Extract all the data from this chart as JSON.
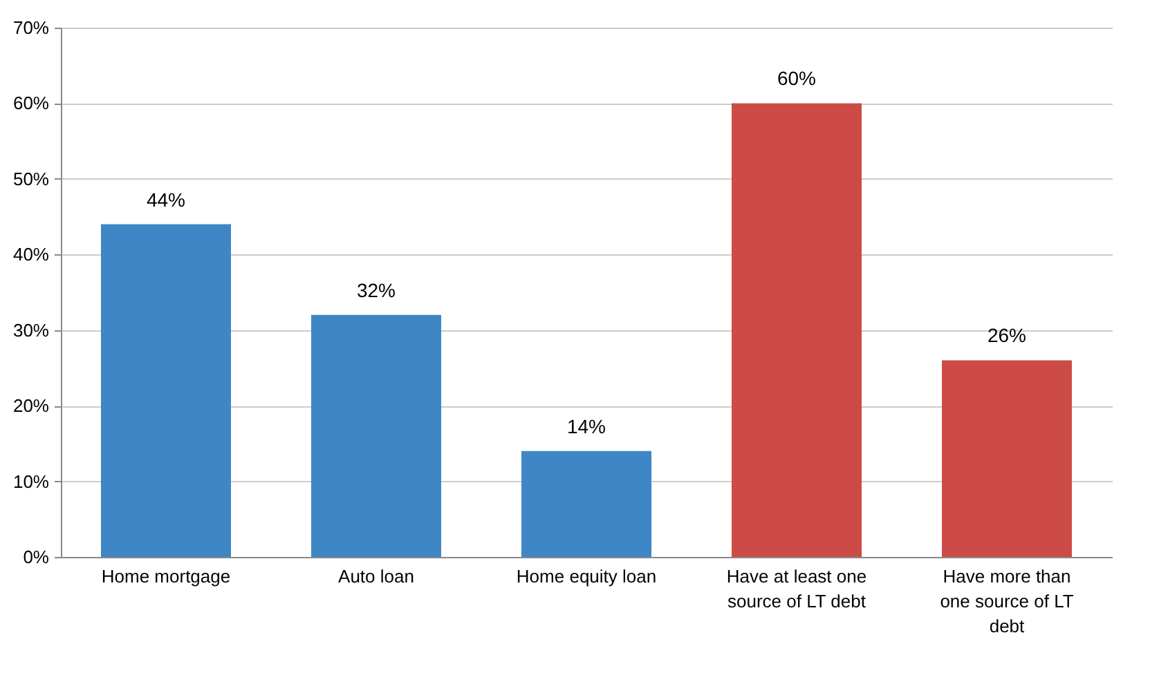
{
  "chart_data": {
    "type": "bar",
    "categories": [
      "Home mortgage",
      "Auto loan",
      "Home equity loan",
      "Have at least one source of LT debt",
      "Have more than one source of LT debt"
    ],
    "values": [
      44,
      32,
      14,
      60,
      26
    ],
    "colors": [
      "#3f86c6",
      "#3f86c6",
      "#3f86c6",
      "#cc4b46",
      "#cc4b46"
    ],
    "value_labels": [
      "44%",
      "32%",
      "14%",
      "60%",
      "26%"
    ],
    "ylim": [
      0,
      70
    ],
    "yticks": [
      {
        "value": 0,
        "label": "0%"
      },
      {
        "value": 10,
        "label": "10%"
      },
      {
        "value": 20,
        "label": "20%"
      },
      {
        "value": 30,
        "label": "30%"
      },
      {
        "value": 40,
        "label": "40%"
      },
      {
        "value": 50,
        "label": "50%"
      },
      {
        "value": 60,
        "label": "60%"
      },
      {
        "value": 70,
        "label": "70%"
      }
    ],
    "grid": "y"
  }
}
